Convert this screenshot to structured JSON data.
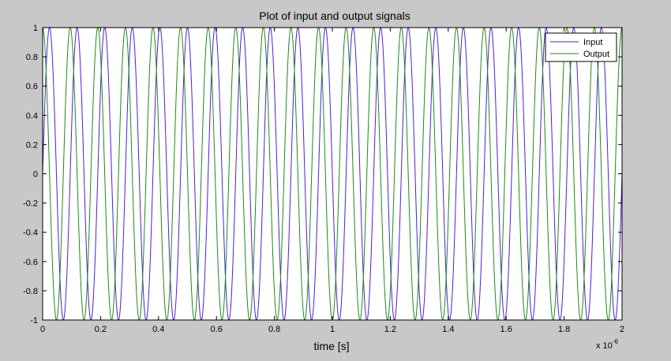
{
  "chart_data": {
    "type": "line",
    "title": "Plot of input and output signals",
    "xlabel": "time [s]",
    "ylabel": "",
    "x_multiplier": "x 10",
    "x_multiplier_exponent": "-6",
    "xlim": [
      0,
      2
    ],
    "ylim": [
      -1,
      1
    ],
    "x_ticks": [
      0,
      0.2,
      0.4,
      0.6,
      0.8,
      1,
      1.2,
      1.4,
      1.6,
      1.8,
      2
    ],
    "x_tick_labels": [
      "0",
      "0.2",
      "0.4",
      "0.6",
      "0.8",
      "1",
      "1.2",
      "1.4",
      "1.6",
      "1.8",
      "2"
    ],
    "y_ticks": [
      -1,
      -0.8,
      -0.6,
      -0.4,
      -0.2,
      0,
      0.2,
      0.4,
      0.6,
      0.8,
      1
    ],
    "y_tick_labels": [
      "-1",
      "-0.8",
      "-0.6",
      "-0.4",
      "-0.2",
      "0",
      "0.2",
      "0.4",
      "0.6",
      "0.8",
      "1"
    ],
    "grid": false,
    "legend_position": "top-right",
    "series": [
      {
        "name": "Input",
        "color": "#4b1fd6",
        "amplitude": 1,
        "cycles": 21,
        "phase_deg": 0
      },
      {
        "name": "Output",
        "color": "#1a8a1a",
        "amplitude": 1,
        "cycles": 21,
        "phase_deg": 90
      }
    ]
  },
  "colors": {
    "figure_background": "#c8c8c8",
    "axes_background": "#ffffff"
  }
}
